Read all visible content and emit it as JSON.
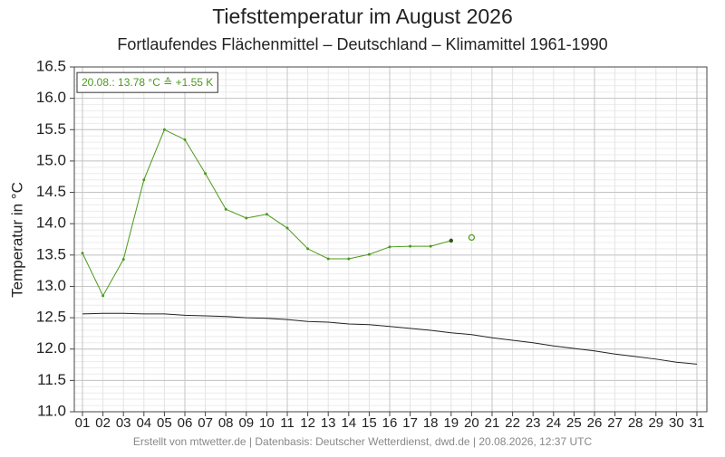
{
  "chart_data": {
    "type": "line",
    "title": "Tiefsttemperatur im August 2026",
    "subtitle": "Fortlaufendes Flächenmittel – Deutschland – Klimamittel 1961-1990",
    "y_label": "Temperatur in °C",
    "annotation": "20.08.: 13.78 °C ≙ +1.55 K",
    "footer": "Erstellt von mtwetter.de | Datenbasis: Deutscher Wetterdienst, dwd.de | 20.08.2026, 12:37 UTC",
    "categories": [
      "01",
      "02",
      "03",
      "04",
      "05",
      "06",
      "07",
      "08",
      "09",
      "10",
      "11",
      "12",
      "13",
      "14",
      "15",
      "16",
      "17",
      "18",
      "19",
      "20",
      "21",
      "22",
      "23",
      "24",
      "25",
      "26",
      "27",
      "28",
      "29",
      "30",
      "31"
    ],
    "series": [
      {
        "color": "#4a9a1a",
        "values": [
          13.53,
          12.85,
          13.43,
          14.7,
          15.5,
          15.34,
          14.8,
          14.23,
          14.09,
          14.15,
          13.93,
          13.6,
          13.44,
          13.44,
          13.51,
          13.63,
          13.64,
          13.64,
          13.73,
          null,
          null,
          null,
          null,
          null,
          null,
          null,
          null,
          null,
          null,
          null,
          null
        ]
      },
      {
        "color": "#4a9a1a",
        "marker": "open-circle",
        "values": [
          null,
          null,
          null,
          null,
          null,
          null,
          null,
          null,
          null,
          null,
          null,
          null,
          null,
          null,
          null,
          null,
          null,
          null,
          null,
          13.78,
          null,
          null,
          null,
          null,
          null,
          null,
          null,
          null,
          null,
          null,
          null
        ]
      },
      {
        "color": "#222222",
        "values": [
          12.56,
          12.57,
          12.57,
          12.56,
          12.56,
          12.54,
          12.53,
          12.52,
          12.5,
          12.49,
          12.47,
          12.44,
          12.43,
          12.4,
          12.39,
          12.36,
          12.33,
          12.3,
          12.26,
          12.23,
          12.18,
          12.14,
          12.1,
          12.05,
          12.01,
          11.97,
          11.92,
          11.88,
          11.84,
          11.79,
          11.76
        ]
      }
    ],
    "ylim": [
      11.0,
      16.5
    ],
    "yticks": [
      {
        "value": 11.0,
        "label": "11.0"
      },
      11.5,
      {
        "value": 12.0,
        "label": "12.0"
      },
      12.5,
      {
        "value": 13.0,
        "label": "13.0"
      },
      13.5,
      {
        "value": 14.0,
        "label": "14.0"
      },
      14.5,
      {
        "value": 15.0,
        "label": "15.0"
      },
      15.5,
      {
        "value": 16.0,
        "label": "16.0"
      },
      16.5
    ],
    "grid": true
  }
}
